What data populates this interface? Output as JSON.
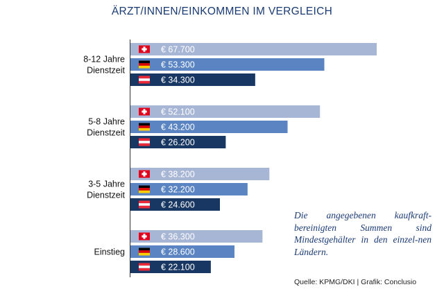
{
  "chart_data": {
    "type": "bar",
    "orientation": "horizontal",
    "title": "ÄRZT/INNEN/EINKOMMEN IM VERGLEICH",
    "categories": [
      [
        "8-12 Jahre",
        "Dienstzeit"
      ],
      [
        "5-8 Jahre",
        "Dienstzeit"
      ],
      [
        "3-5 Jahre",
        "Dienstzeit"
      ],
      [
        "Einstieg"
      ]
    ],
    "series": [
      {
        "key": "ch",
        "flag": "flag-switzerland-icon",
        "color": "#a8b6d6",
        "values": [
          67700,
          52100,
          38200,
          36300
        ],
        "labels": [
          "€ 67.700",
          "€ 52.100",
          "€ 38.200",
          "€ 36.300"
        ]
      },
      {
        "key": "de",
        "flag": "flag-germany-icon",
        "color": "#5a85c2",
        "values": [
          53300,
          43200,
          32200,
          28600
        ],
        "labels": [
          "€ 53.300",
          "€ 43.200",
          "€ 32.200",
          "€ 28.600"
        ]
      },
      {
        "key": "at",
        "flag": "flag-austria-icon",
        "color": "#183762",
        "values": [
          34300,
          26200,
          24600,
          22100
        ],
        "labels": [
          "€ 34.300",
          "€ 26.200",
          "€ 24.600",
          "€ 22.100"
        ]
      }
    ],
    "legend": "none",
    "grid": false
  },
  "note": "Die angegebenen kaufkraft-bereinigten Summen sind Mindestgehälter in den einzel-nen Ländern.",
  "source": "Quelle: KPMG/DKI | Grafik: Conclusio"
}
